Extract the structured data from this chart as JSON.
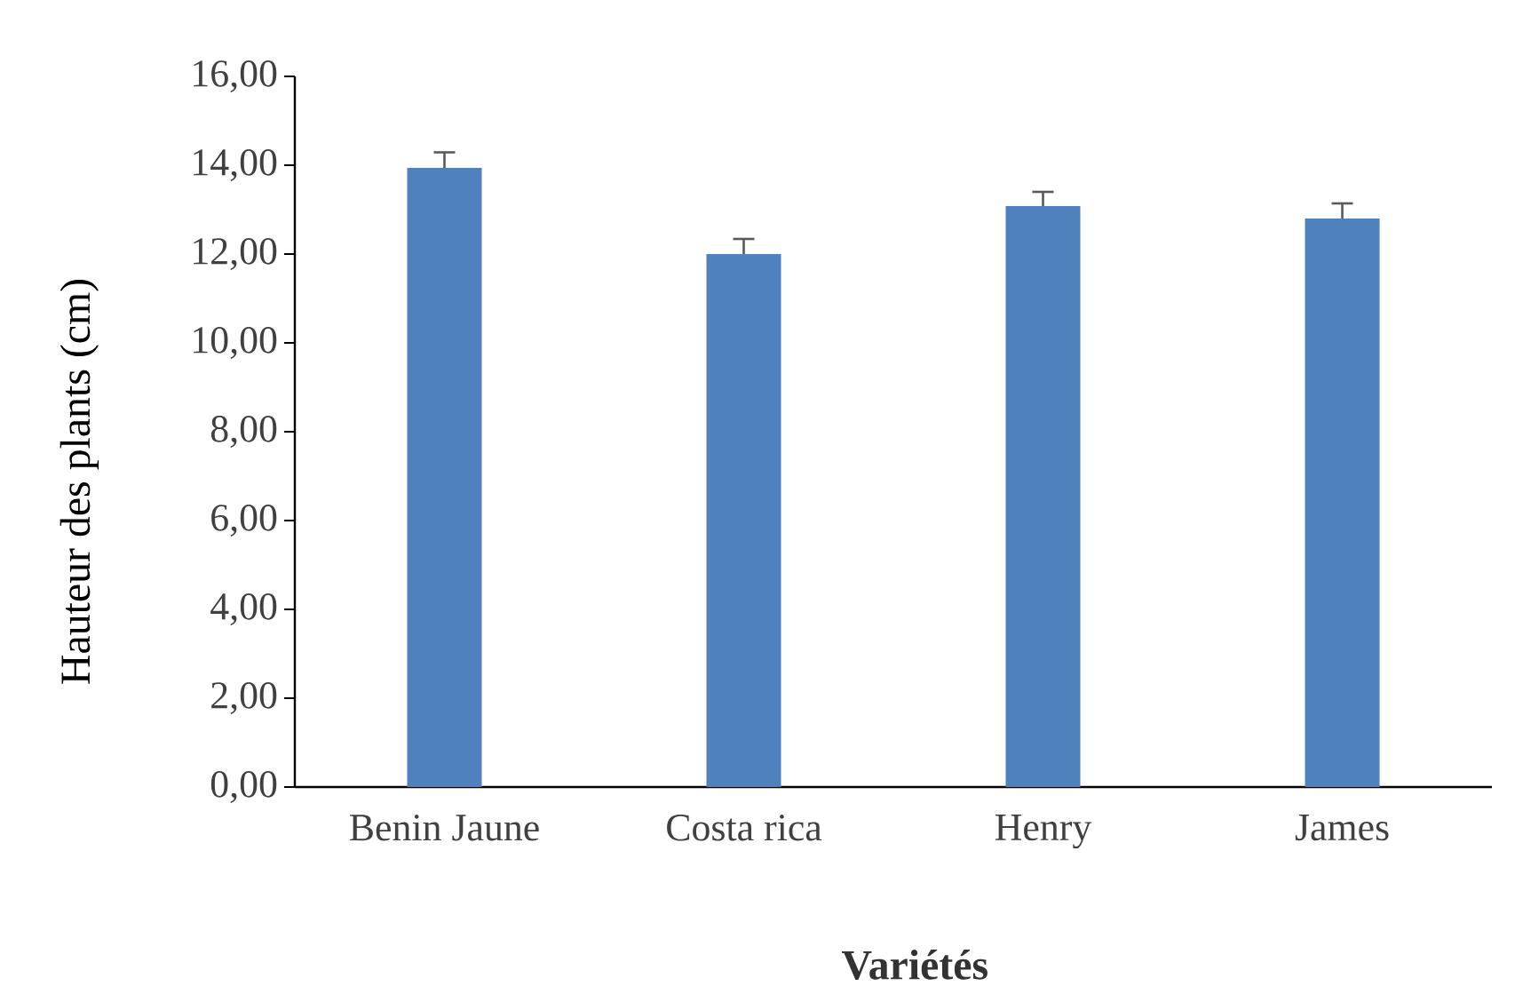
{
  "chart_data": {
    "type": "bar",
    "xlabel": "**Variétés**",
    "ylabel": "Hauteur des plants (cm)",
    "categories": [
      "Benin Jaune",
      "Costa rica",
      "Henry",
      "James"
    ],
    "values": [
      13.94,
      12.0,
      13.08,
      12.8
    ],
    "errors": [
      [
        13.94,
        14.29
      ],
      [
        12.0,
        12.34
      ],
      [
        13.08,
        13.4
      ],
      [
        12.8,
        13.14
      ]
    ],
    "color": "#4f81bd",
    "ylim": [
      0,
      16
    ],
    "yticks": [
      {
        "value": 0,
        "label": "0,00"
      },
      {
        "value": 2,
        "label": "2,00"
      },
      {
        "value": 4,
        "label": "4,00"
      },
      {
        "value": 6,
        "label": "6,00"
      },
      {
        "value": 8,
        "label": "8,00"
      },
      {
        "value": 10,
        "label": "10,00"
      },
      {
        "value": 12,
        "label": "12,00"
      },
      {
        "value": 14,
        "label": "14,00"
      },
      {
        "value": 16,
        "label": "16,00"
      }
    ],
    "grid": false
  }
}
